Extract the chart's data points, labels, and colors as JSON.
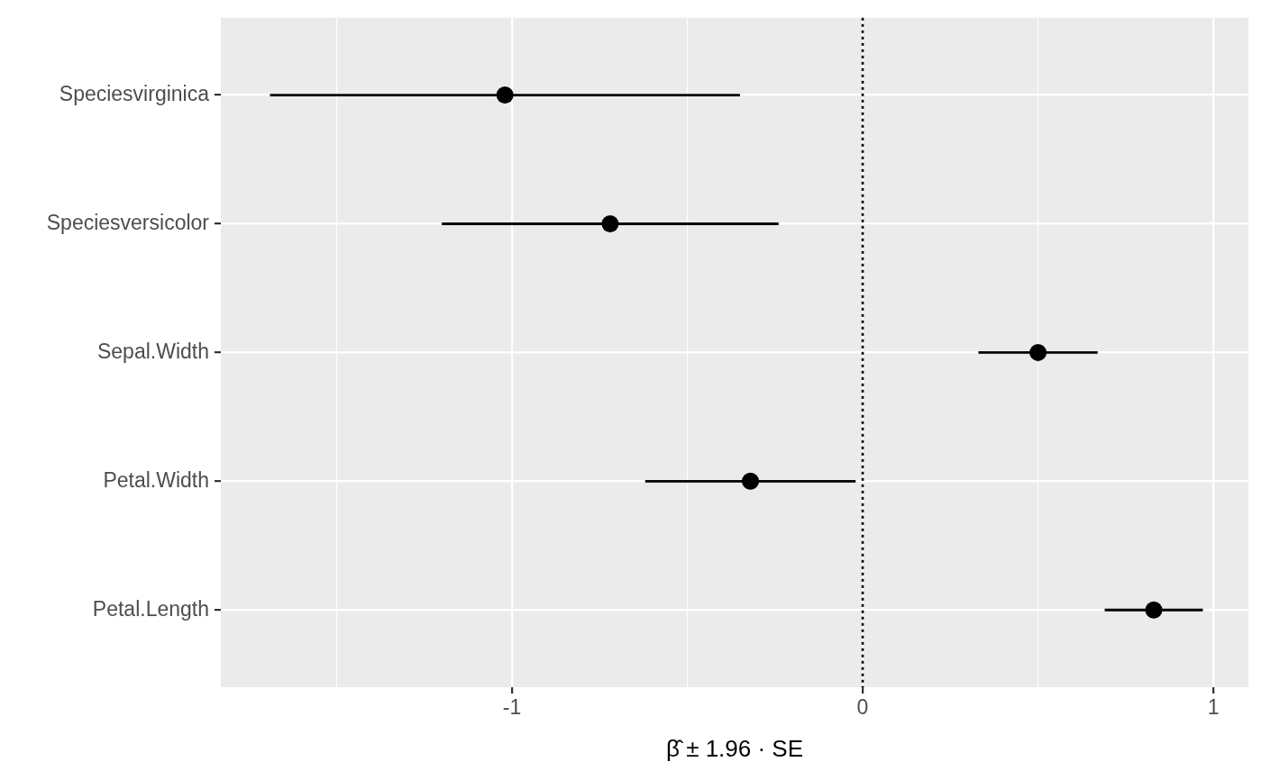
{
  "chart_data": {
    "type": "scatter",
    "orientation": "horizontal",
    "xlabel": "β̂ ± 1.96 · SE",
    "categories": [
      "Speciesvirginica",
      "Speciesversicolor",
      "Sepal.Width",
      "Petal.Width",
      "Petal.Length"
    ],
    "values": [
      -1.02,
      -0.72,
      0.5,
      -0.32,
      0.83
    ],
    "errors": [
      0.67,
      0.48,
      0.17,
      0.3,
      0.14
    ],
    "color": "#000000",
    "xlim": [
      -1.83,
      1.1
    ],
    "xticks": [
      {
        "value": -1.5,
        "label": null
      },
      -1,
      {
        "value": -0.5,
        "label": null
      },
      0,
      {
        "value": 0.5,
        "label": null
      },
      1
    ],
    "ref_lines": [
      {
        "axis": "x",
        "value": 0,
        "line_style": "dotted"
      }
    ],
    "grid": true,
    "marker": "circle"
  }
}
